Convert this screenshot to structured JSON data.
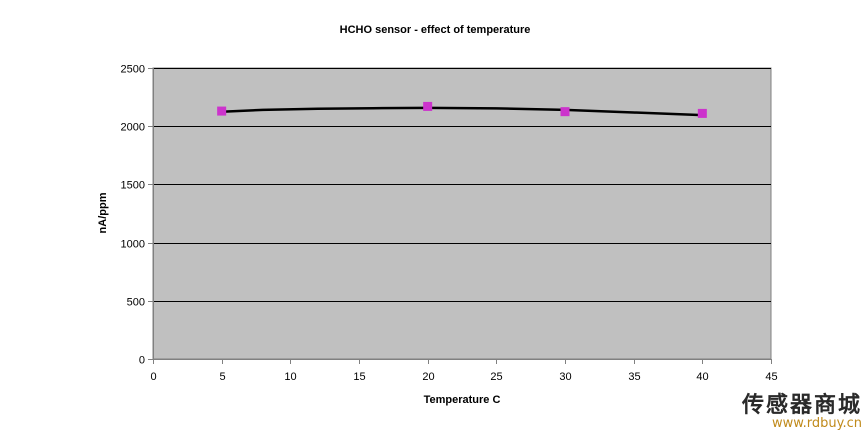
{
  "chart_data": {
    "type": "scatter",
    "title": "HCHO sensor - effect of temperature",
    "xlabel": "Temperature C",
    "ylabel": "nA/ppm",
    "xlim": [
      0,
      45
    ],
    "ylim": [
      0,
      2500
    ],
    "xticks": [
      0,
      5,
      10,
      15,
      20,
      25,
      30,
      35,
      40,
      45
    ],
    "yticks": [
      0,
      500,
      1000,
      1500,
      2000,
      2500
    ],
    "grid": "horizontal",
    "legend": "none",
    "series": [
      {
        "points": [
          {
            "x": 5,
            "y": 2130
          },
          {
            "x": 20,
            "y": 2170
          },
          {
            "x": 30,
            "y": 2125
          },
          {
            "x": 40,
            "y": 2110
          }
        ],
        "marker_color": "#cc33cc"
      }
    ],
    "trendline": {
      "type": "polynomial",
      "color": "#000000",
      "points": [
        {
          "x": 5,
          "y": 2125
        },
        {
          "x": 8,
          "y": 2140
        },
        {
          "x": 12,
          "y": 2150
        },
        {
          "x": 16,
          "y": 2155
        },
        {
          "x": 20,
          "y": 2157
        },
        {
          "x": 25,
          "y": 2153
        },
        {
          "x": 30,
          "y": 2140
        },
        {
          "x": 35,
          "y": 2118
        },
        {
          "x": 40,
          "y": 2095
        }
      ]
    },
    "plot_background": "#c0c0c0"
  },
  "watermark": {
    "chinese": "传感器商城",
    "url": "www.rdbuy.cn"
  }
}
